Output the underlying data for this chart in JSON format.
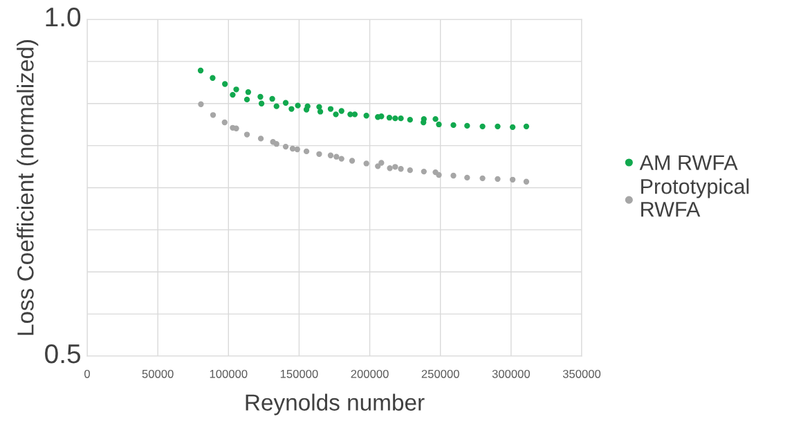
{
  "chart_data": {
    "type": "scatter",
    "xlabel": "Reynolds number",
    "ylabel": "Loss Coefficient (normalized)",
    "xlim": [
      0,
      350000
    ],
    "xticks": [
      0,
      50000,
      100000,
      150000,
      200000,
      250000,
      300000,
      350000
    ],
    "ylim": [
      0.5,
      1.0
    ],
    "yticks": [
      {
        "value": 0.5,
        "label": "0.5"
      },
      {
        "value": 0.5625,
        "label": null
      },
      {
        "value": 0.625,
        "label": null
      },
      {
        "value": 0.6875,
        "label": null
      },
      {
        "value": 0.75,
        "label": null
      },
      {
        "value": 0.8125,
        "label": null
      },
      {
        "value": 0.875,
        "label": null
      },
      {
        "value": 0.9375,
        "label": null
      },
      {
        "value": 1.0,
        "label": "1.0"
      }
    ],
    "grid": true,
    "legend": "right",
    "marker": "circle",
    "series": [
      {
        "name": "AM RWFA",
        "color": "#11a84e",
        "x": [
          80300,
          88800,
          97500,
          105500,
          103000,
          114000,
          113100,
          122600,
          123400,
          131000,
          134000,
          140500,
          144600,
          149100,
          155200,
          156000,
          164200,
          165000,
          172300,
          176000,
          180000,
          186200,
          189400,
          197600,
          205700,
          208200,
          213900,
          218000,
          222000,
          228500,
          238300,
          238000,
          246500,
          248900,
          259200,
          268900,
          279800,
          290500,
          301100,
          310800
        ],
        "values": [
          0.924,
          0.913,
          0.904,
          0.896,
          0.888,
          0.892,
          0.881,
          0.885,
          0.875,
          0.882,
          0.871,
          0.876,
          0.867,
          0.872,
          0.866,
          0.871,
          0.87,
          0.863,
          0.867,
          0.859,
          0.864,
          0.859,
          0.859,
          0.857,
          0.855,
          0.856,
          0.854,
          0.853,
          0.853,
          0.851,
          0.852,
          0.847,
          0.852,
          0.844,
          0.843,
          0.842,
          0.841,
          0.841,
          0.84,
          0.841
        ]
      },
      {
        "name": "Prototypical\nRWFA",
        "color": "#a6a6a6",
        "x": [
          80500,
          89100,
          97300,
          103000,
          105500,
          113100,
          122900,
          131500,
          134000,
          140500,
          145400,
          148700,
          155200,
          164200,
          172300,
          176400,
          180000,
          187500,
          197600,
          205700,
          208200,
          214200,
          218000,
          222000,
          228500,
          238300,
          246500,
          248900,
          259200,
          268900,
          279800,
          290500,
          301100,
          310800
        ],
        "values": [
          0.874,
          0.858,
          0.847,
          0.839,
          0.838,
          0.829,
          0.823,
          0.818,
          0.815,
          0.811,
          0.808,
          0.807,
          0.804,
          0.8,
          0.798,
          0.796,
          0.793,
          0.79,
          0.786,
          0.782,
          0.787,
          0.779,
          0.781,
          0.778,
          0.776,
          0.774,
          0.773,
          0.769,
          0.768,
          0.765,
          0.764,
          0.763,
          0.762,
          0.759
        ]
      }
    ]
  }
}
